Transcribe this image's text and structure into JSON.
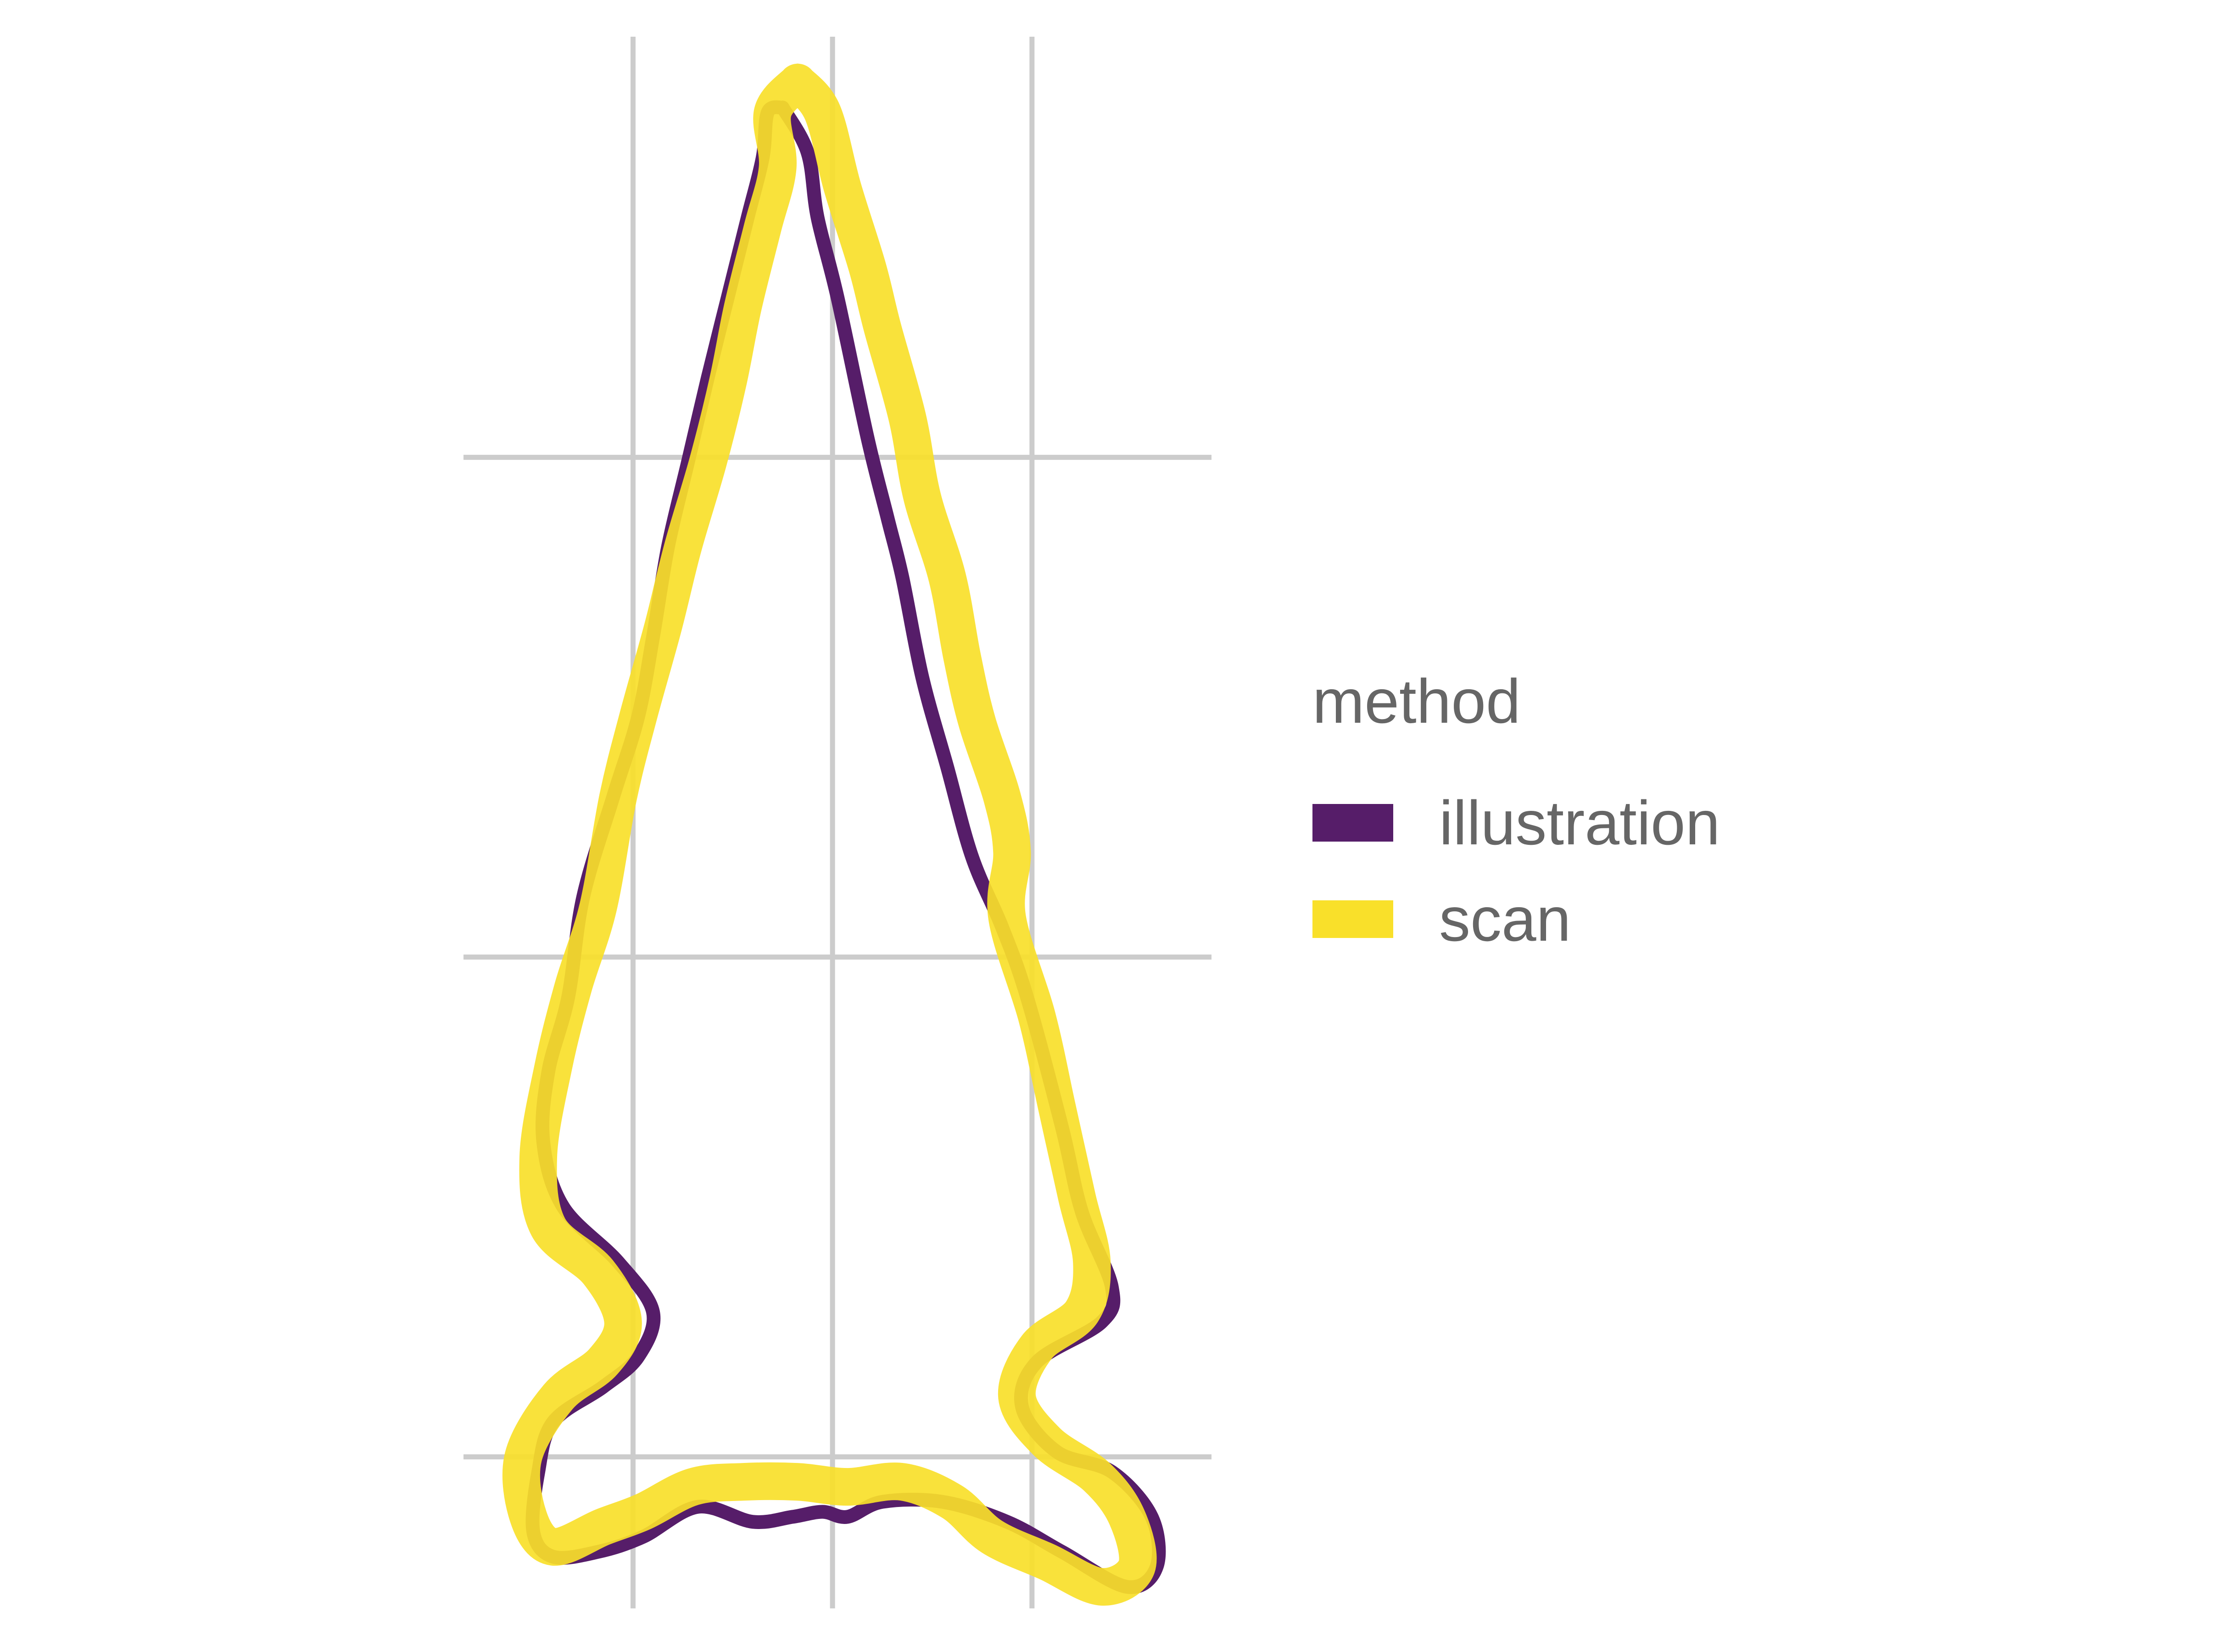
{
  "chart_data": {
    "type": "line",
    "title": "",
    "xlabel": "",
    "ylabel": "",
    "grid": true,
    "xlim": [
      -3.4,
      4.1
    ],
    "ylim": [
      -0.7,
      15.3
    ],
    "x_grid": [
      -1.7,
      0.3,
      2.3
    ],
    "y_grid": [
      1.0,
      6.0,
      11.0
    ],
    "legend": {
      "title": "method",
      "position": "right"
    },
    "series": [
      {
        "name": "illustration",
        "color": "#561D69",
        "points": [
          [
            -0.2,
            14.5
          ],
          [
            0.05,
            14.05
          ],
          [
            0.15,
            13.4
          ],
          [
            0.35,
            12.6
          ],
          [
            0.65,
            11.2
          ],
          [
            0.85,
            10.4
          ],
          [
            1.0,
            9.8
          ],
          [
            1.2,
            8.8
          ],
          [
            1.45,
            7.9
          ],
          [
            1.7,
            7.0
          ],
          [
            2.0,
            6.3
          ],
          [
            2.25,
            5.6
          ],
          [
            2.6,
            4.3
          ],
          [
            2.8,
            3.45
          ],
          [
            3.1,
            2.7
          ],
          [
            3.0,
            2.35
          ],
          [
            2.35,
            1.95
          ],
          [
            2.2,
            1.5
          ],
          [
            2.55,
            1.05
          ],
          [
            3.1,
            0.85
          ],
          [
            3.5,
            0.4
          ],
          [
            3.55,
            -0.1
          ],
          [
            3.25,
            -0.3
          ],
          [
            2.6,
            0.05
          ],
          [
            2.05,
            0.35
          ],
          [
            1.4,
            0.55
          ],
          [
            0.8,
            0.55
          ],
          [
            0.45,
            0.4
          ],
          [
            0.2,
            0.45
          ],
          [
            -0.1,
            0.4
          ],
          [
            -0.5,
            0.35
          ],
          [
            -1.05,
            0.5
          ],
          [
            -1.6,
            0.2
          ],
          [
            -2.05,
            0.05
          ],
          [
            -2.5,
            0.0
          ],
          [
            -2.7,
            0.25
          ],
          [
            -2.65,
            0.85
          ],
          [
            -2.5,
            1.35
          ],
          [
            -2.0,
            1.7
          ],
          [
            -1.65,
            2.0
          ],
          [
            -1.5,
            2.45
          ],
          [
            -1.85,
            2.95
          ],
          [
            -2.4,
            3.5
          ],
          [
            -2.6,
            4.15
          ],
          [
            -2.55,
            4.85
          ],
          [
            -2.35,
            5.6
          ],
          [
            -2.2,
            6.6
          ],
          [
            -1.9,
            7.6
          ],
          [
            -1.65,
            8.4
          ],
          [
            -1.5,
            9.2
          ],
          [
            -1.35,
            10.1
          ],
          [
            -1.15,
            10.95
          ],
          [
            -0.95,
            11.8
          ],
          [
            -0.75,
            12.6
          ],
          [
            -0.55,
            13.4
          ],
          [
            -0.4,
            14.0
          ],
          [
            -0.35,
            14.45
          ],
          [
            -0.2,
            14.5
          ]
        ]
      },
      {
        "name": "scan",
        "color": "#F9E02A",
        "points": [
          [
            -0.05,
            14.75
          ],
          [
            0.2,
            14.45
          ],
          [
            0.4,
            13.7
          ],
          [
            0.65,
            12.9
          ],
          [
            0.8,
            12.3
          ],
          [
            1.05,
            11.4
          ],
          [
            1.2,
            10.6
          ],
          [
            1.45,
            9.8
          ],
          [
            1.6,
            9.0
          ],
          [
            1.75,
            8.35
          ],
          [
            2.0,
            7.6
          ],
          [
            2.1,
            7.05
          ],
          [
            2.05,
            6.4
          ],
          [
            2.35,
            5.4
          ],
          [
            2.55,
            4.5
          ],
          [
            2.75,
            3.6
          ],
          [
            2.9,
            2.95
          ],
          [
            2.8,
            2.45
          ],
          [
            2.35,
            2.1
          ],
          [
            2.15,
            1.6
          ],
          [
            2.45,
            1.15
          ],
          [
            2.95,
            0.8
          ],
          [
            3.25,
            0.4
          ],
          [
            3.35,
            -0.1
          ],
          [
            3.0,
            -0.3
          ],
          [
            2.45,
            -0.05
          ],
          [
            1.9,
            0.2
          ],
          [
            1.5,
            0.55
          ],
          [
            1.0,
            0.75
          ],
          [
            0.45,
            0.7
          ],
          [
            -0.05,
            0.75
          ],
          [
            -0.6,
            0.75
          ],
          [
            -1.1,
            0.7
          ],
          [
            -1.6,
            0.45
          ],
          [
            -2.0,
            0.3
          ],
          [
            -2.5,
            0.1
          ],
          [
            -2.75,
            0.4
          ],
          [
            -2.8,
            1.0
          ],
          [
            -2.45,
            1.6
          ],
          [
            -2.0,
            1.95
          ],
          [
            -1.8,
            2.35
          ],
          [
            -2.05,
            2.85
          ],
          [
            -2.55,
            3.3
          ],
          [
            -2.65,
            4.0
          ],
          [
            -2.5,
            4.9
          ],
          [
            -2.3,
            5.7
          ],
          [
            -2.05,
            6.5
          ],
          [
            -1.85,
            7.6
          ],
          [
            -1.65,
            8.4
          ],
          [
            -1.4,
            9.3
          ],
          [
            -1.2,
            10.1
          ],
          [
            -0.95,
            10.95
          ],
          [
            -0.75,
            11.75
          ],
          [
            -0.6,
            12.5
          ],
          [
            -0.4,
            13.3
          ],
          [
            -0.25,
            13.9
          ],
          [
            -0.3,
            14.45
          ],
          [
            -0.05,
            14.75
          ]
        ]
      }
    ]
  }
}
